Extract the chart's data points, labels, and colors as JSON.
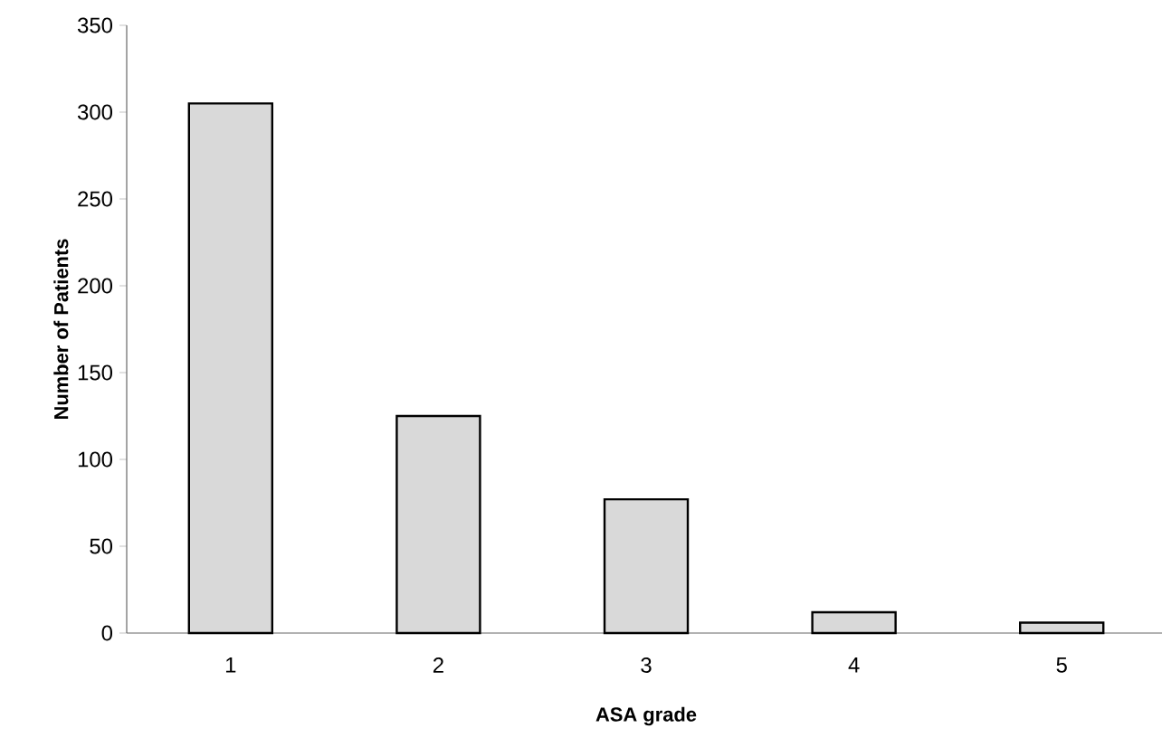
{
  "chart_data": {
    "type": "bar",
    "xlabel": "ASA grade",
    "ylabel": "Number of Patients",
    "categories": [
      "1",
      "2",
      "3",
      "4",
      "5"
    ],
    "values": [
      305,
      125,
      77,
      12,
      6
    ],
    "color": "#d9d9d9",
    "ylim": [
      0,
      350
    ],
    "yticks": [
      0,
      50,
      100,
      150,
      200,
      250,
      300,
      350
    ],
    "grid": false
  }
}
